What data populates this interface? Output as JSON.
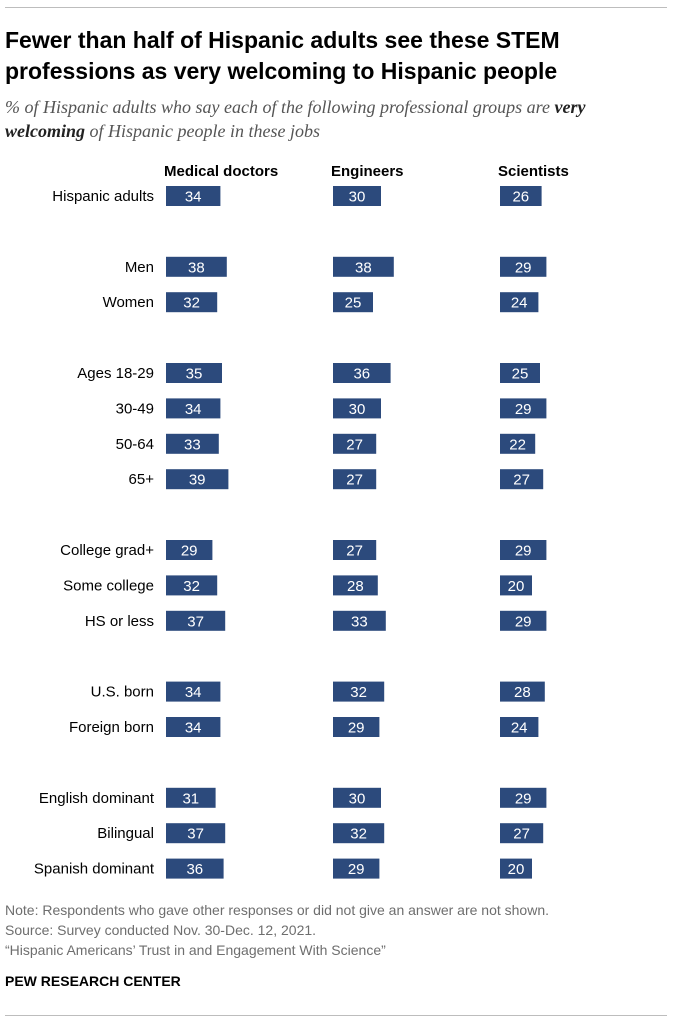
{
  "title": "Fewer than half of Hispanic adults see these STEM professions as very welcoming to Hispanic people",
  "subtitle": {
    "part1": "% of Hispanic adults who say each of the following professional groups are",
    "emphasis": "very welcoming",
    "part2": "of Hispanic people in these jobs"
  },
  "colors": {
    "bar": "#2c4a7c",
    "bar_text": "#ffffff"
  },
  "chart_data": {
    "type": "bar",
    "orientation": "horizontal",
    "title": "Fewer than half of Hispanic adults see these STEM professions as very welcoming to Hispanic people",
    "columns": [
      "Medical doctors",
      "Engineers",
      "Scientists"
    ],
    "categories": [
      "Hispanic adults",
      "Men",
      "Women",
      "Ages 18-29",
      "30-49",
      "50-64",
      "65+",
      "College grad+",
      "Some college",
      "HS or less",
      "U.S. born",
      "Foreign born",
      "English dominant",
      "Bilingual",
      "Spanish dominant"
    ],
    "groups": [
      1,
      2,
      2,
      3,
      3,
      3,
      3,
      4,
      4,
      4,
      5,
      5,
      6,
      6,
      6
    ],
    "series": [
      {
        "name": "Medical doctors",
        "values": [
          34,
          38,
          32,
          35,
          34,
          33,
          39,
          29,
          32,
          37,
          34,
          34,
          31,
          37,
          36
        ]
      },
      {
        "name": "Engineers",
        "values": [
          30,
          38,
          25,
          36,
          30,
          27,
          27,
          27,
          28,
          33,
          32,
          29,
          30,
          32,
          29
        ]
      },
      {
        "name": "Scientists",
        "values": [
          26,
          29,
          24,
          25,
          29,
          22,
          27,
          29,
          20,
          29,
          28,
          24,
          29,
          27,
          20
        ]
      }
    ],
    "xlabel": "",
    "ylabel": "",
    "xlim": [
      0,
      100
    ]
  },
  "note": "Note: Respondents who gave other responses or did not give an answer are not shown.",
  "source": "Source: Survey conducted Nov. 30-Dec. 12, 2021.",
  "report": "“Hispanic Americans’ Trust in and Engagement With Science”",
  "org": "PEW RESEARCH CENTER"
}
